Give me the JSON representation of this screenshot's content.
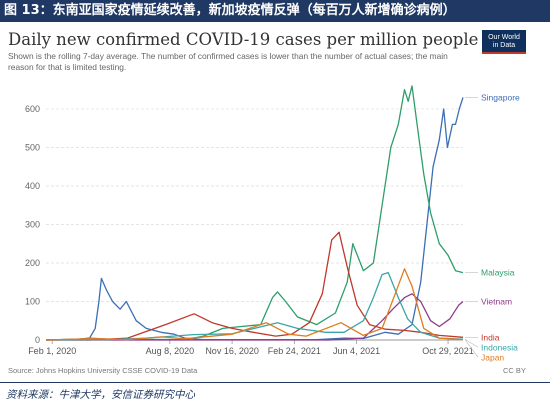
{
  "figure_header": "图 13：东南亚国家疫情延续改善，新加坡疫情反弹（每百万人新增确诊病例）",
  "logo": {
    "line1": "Our World",
    "line2": "in Data"
  },
  "source_line": "Source: Johns Hopkins University CSSE COVID-19 Data",
  "license": "CC BY",
  "footnote": "资料来源：牛津大学，安信证券研究中心",
  "colors": {
    "header_bg": "#1f3864",
    "grid": "#dddddd",
    "Singapore": "#3b6fb6",
    "Malaysia": "#2e9e6b",
    "Vietnam": "#8e3a8a",
    "India": "#c0392b",
    "Indonesia": "#3aa6a6",
    "Japan": "#e07b22"
  },
  "chart_data": {
    "type": "line",
    "title": "Daily new confirmed COVID-19 cases per million people",
    "subtitle": "Shown is the rolling 7-day average. The number of confirmed cases is lower than the number of actual cases; the main reason for that is limited testing.",
    "xlabel": "",
    "ylabel": "",
    "x_start": "2020-01-22",
    "x_end": "2021-11-22",
    "x_ticks": [
      {
        "date": "2020-02-01",
        "label": "Feb 1, 2020"
      },
      {
        "date": "2020-08-08",
        "label": "Aug 8, 2020"
      },
      {
        "date": "2020-11-16",
        "label": "Nov 16, 2020"
      },
      {
        "date": "2021-02-24",
        "label": "Feb 24, 2021"
      },
      {
        "date": "2021-06-04",
        "label": "Jun 4, 2021"
      },
      {
        "date": "2021-10-29",
        "label": "Oct 29, 2021"
      }
    ],
    "y_ticks": [
      0,
      100,
      200,
      300,
      400,
      500,
      600
    ],
    "ylim": [
      0,
      670
    ],
    "grid": true,
    "legend": "right, labels at line ends",
    "series": [
      {
        "name": "Singapore",
        "points": [
          [
            "2020-01-22",
            0
          ],
          [
            "2020-03-15",
            2
          ],
          [
            "2020-04-01",
            5
          ],
          [
            "2020-04-10",
            30
          ],
          [
            "2020-04-16",
            100
          ],
          [
            "2020-04-20",
            160
          ],
          [
            "2020-04-28",
            130
          ],
          [
            "2020-05-08",
            100
          ],
          [
            "2020-05-20",
            80
          ],
          [
            "2020-05-30",
            100
          ],
          [
            "2020-06-15",
            50
          ],
          [
            "2020-07-01",
            30
          ],
          [
            "2020-07-25",
            20
          ],
          [
            "2020-08-15",
            15
          ],
          [
            "2020-09-01",
            5
          ],
          [
            "2020-10-01",
            1
          ],
          [
            "2021-04-01",
            1
          ],
          [
            "2021-05-15",
            5
          ],
          [
            "2021-06-15",
            4
          ],
          [
            "2021-07-20",
            20
          ],
          [
            "2021-08-10",
            15
          ],
          [
            "2021-09-01",
            40
          ],
          [
            "2021-09-15",
            150
          ],
          [
            "2021-09-25",
            300
          ],
          [
            "2021-10-05",
            450
          ],
          [
            "2021-10-15",
            520
          ],
          [
            "2021-10-22",
            600
          ],
          [
            "2021-10-28",
            500
          ],
          [
            "2021-11-05",
            560
          ],
          [
            "2021-11-10",
            560
          ],
          [
            "2021-11-16",
            600
          ],
          [
            "2021-11-22",
            630
          ]
        ]
      },
      {
        "name": "Malaysia",
        "points": [
          [
            "2020-01-22",
            0
          ],
          [
            "2020-03-15",
            2
          ],
          [
            "2020-04-01",
            5
          ],
          [
            "2020-05-01",
            2
          ],
          [
            "2020-09-01",
            1
          ],
          [
            "2020-10-01",
            10
          ],
          [
            "2020-11-01",
            30
          ],
          [
            "2020-12-01",
            35
          ],
          [
            "2021-01-01",
            40
          ],
          [
            "2021-01-20",
            110
          ],
          [
            "2021-01-28",
            125
          ],
          [
            "2021-02-10",
            100
          ],
          [
            "2021-03-01",
            60
          ],
          [
            "2021-04-01",
            40
          ],
          [
            "2021-05-01",
            70
          ],
          [
            "2021-05-20",
            150
          ],
          [
            "2021-05-29",
            250
          ],
          [
            "2021-06-15",
            180
          ],
          [
            "2021-07-01",
            200
          ],
          [
            "2021-07-15",
            350
          ],
          [
            "2021-07-29",
            500
          ],
          [
            "2021-08-10",
            560
          ],
          [
            "2021-08-20",
            650
          ],
          [
            "2021-08-26",
            620
          ],
          [
            "2021-09-01",
            660
          ],
          [
            "2021-09-10",
            550
          ],
          [
            "2021-09-20",
            430
          ],
          [
            "2021-10-01",
            330
          ],
          [
            "2021-10-15",
            250
          ],
          [
            "2021-10-29",
            220
          ],
          [
            "2021-11-10",
            180
          ],
          [
            "2021-11-22",
            175
          ]
        ]
      },
      {
        "name": "Vietnam",
        "points": [
          [
            "2020-01-22",
            0
          ],
          [
            "2021-04-20",
            0
          ],
          [
            "2021-05-15",
            2
          ],
          [
            "2021-06-15",
            5
          ],
          [
            "2021-07-15",
            50
          ],
          [
            "2021-08-01",
            80
          ],
          [
            "2021-08-20",
            110
          ],
          [
            "2021-09-01",
            120
          ],
          [
            "2021-09-15",
            100
          ],
          [
            "2021-10-01",
            50
          ],
          [
            "2021-10-15",
            35
          ],
          [
            "2021-11-01",
            55
          ],
          [
            "2021-11-15",
            90
          ],
          [
            "2021-11-22",
            100
          ]
        ]
      },
      {
        "name": "India",
        "points": [
          [
            "2020-01-22",
            0
          ],
          [
            "2020-04-01",
            0
          ],
          [
            "2020-06-01",
            5
          ],
          [
            "2020-08-01",
            40
          ],
          [
            "2020-09-16",
            68
          ],
          [
            "2020-10-15",
            45
          ],
          [
            "2020-11-16",
            30
          ],
          [
            "2020-12-20",
            20
          ],
          [
            "2021-01-25",
            10
          ],
          [
            "2021-02-20",
            15
          ],
          [
            "2021-03-20",
            45
          ],
          [
            "2021-04-10",
            120
          ],
          [
            "2021-04-25",
            260
          ],
          [
            "2021-05-07",
            280
          ],
          [
            "2021-05-20",
            190
          ],
          [
            "2021-06-05",
            90
          ],
          [
            "2021-06-25",
            40
          ],
          [
            "2021-07-20",
            28
          ],
          [
            "2021-08-20",
            25
          ],
          [
            "2021-09-15",
            20
          ],
          [
            "2021-10-15",
            12
          ],
          [
            "2021-11-22",
            7
          ]
        ]
      },
      {
        "name": "Indonesia",
        "points": [
          [
            "2020-01-22",
            0
          ],
          [
            "2020-05-01",
            1
          ],
          [
            "2020-07-01",
            5
          ],
          [
            "2020-09-15",
            14
          ],
          [
            "2020-11-16",
            16
          ],
          [
            "2021-01-28",
            45
          ],
          [
            "2021-03-01",
            30
          ],
          [
            "2021-04-15",
            20
          ],
          [
            "2021-05-15",
            20
          ],
          [
            "2021-06-15",
            50
          ],
          [
            "2021-07-01",
            110
          ],
          [
            "2021-07-15",
            170
          ],
          [
            "2021-07-25",
            175
          ],
          [
            "2021-08-10",
            110
          ],
          [
            "2021-08-25",
            55
          ],
          [
            "2021-09-15",
            20
          ],
          [
            "2021-10-15",
            5
          ],
          [
            "2021-11-22",
            2
          ]
        ]
      },
      {
        "name": "Japan",
        "points": [
          [
            "2020-01-22",
            0
          ],
          [
            "2020-04-10",
            4
          ],
          [
            "2020-06-01",
            1
          ],
          [
            "2020-07-25",
            8
          ],
          [
            "2020-09-01",
            3
          ],
          [
            "2020-11-16",
            15
          ],
          [
            "2021-01-10",
            45
          ],
          [
            "2021-02-15",
            15
          ],
          [
            "2021-03-15",
            10
          ],
          [
            "2021-05-10",
            45
          ],
          [
            "2021-06-15",
            12
          ],
          [
            "2021-07-15",
            30
          ],
          [
            "2021-08-05",
            120
          ],
          [
            "2021-08-20",
            185
          ],
          [
            "2021-09-01",
            140
          ],
          [
            "2021-09-20",
            30
          ],
          [
            "2021-10-15",
            5
          ],
          [
            "2021-11-22",
            1
          ]
        ]
      }
    ]
  }
}
